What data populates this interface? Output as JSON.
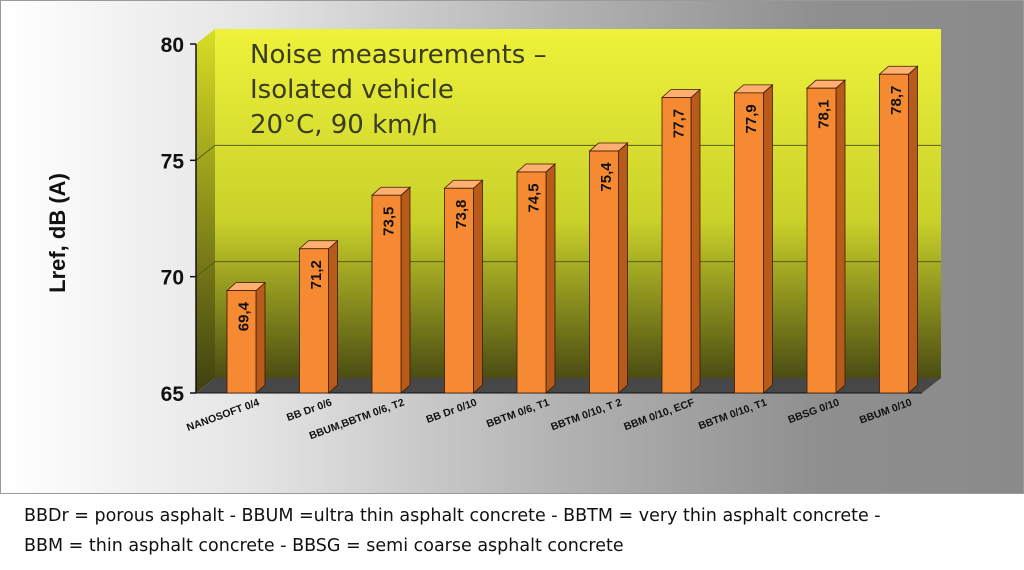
{
  "chart_data": {
    "type": "bar",
    "title_lines": [
      "Noise measurements –",
      "Isolated vehicle",
      "20°C, 90 km/h"
    ],
    "ylabel": "Lref, dB (A)",
    "xlabel": "",
    "ylim": [
      65,
      80
    ],
    "yticks": [
      "80",
      "75",
      "70",
      "65"
    ],
    "grid": true,
    "categories": [
      "NANOSOFT 0/4",
      "BB Dr 0/6",
      "BBUM,BBTM 0/6, T2",
      "BB Dr 0/10",
      "BBTM 0/6, T1",
      "BBTM 0/10, T 2",
      "BBM 0/10, ECF",
      "BBTM 0/10, T1",
      "BBSG 0/10",
      "BBUM 0/10"
    ],
    "values": [
      69.4,
      71.2,
      73.5,
      73.8,
      74.5,
      75.4,
      77.7,
      77.9,
      78.1,
      78.7
    ],
    "value_labels": [
      "69,4",
      "71,2",
      "73,5",
      "73,8",
      "74,5",
      "75,4",
      "77,7",
      "77,9",
      "78,1",
      "78,7"
    ],
    "colors": {
      "bar_front": "#f58a32",
      "bar_side": "#b85b1a",
      "bar_top": "#ffb070",
      "wall": "#d8e22a",
      "floor": "#4a4a4a"
    }
  },
  "caption": {
    "line1": "BBDr = porous asphalt - BBUM =ultra thin asphalt concrete - BBTM = very thin asphalt concrete -",
    "line2": "BBM = thin asphalt concrete - BBSG = semi coarse asphalt concrete"
  }
}
